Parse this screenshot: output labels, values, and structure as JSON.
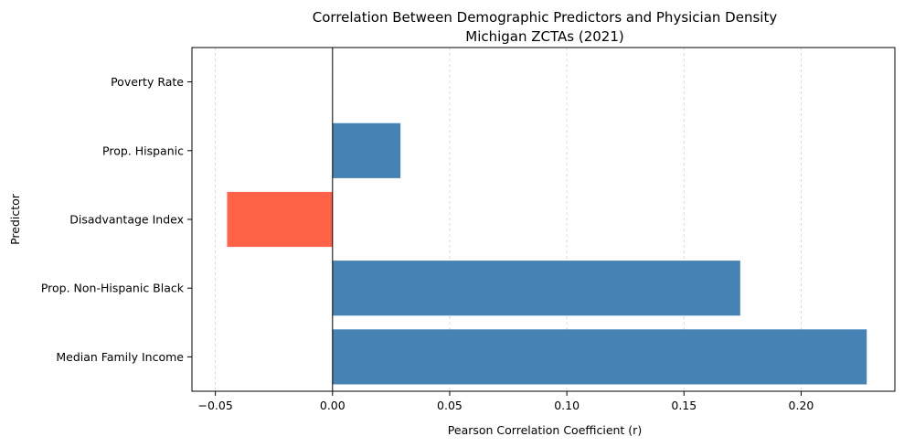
{
  "chart_data": {
    "type": "bar",
    "orientation": "horizontal",
    "title": "Correlation Between Demographic Predictors and Physician Density",
    "subtitle": "Michigan ZCTAs (2021)",
    "xlabel": "Pearson Correlation Coefficient (r)",
    "ylabel": "Predictor",
    "xlim": [
      -0.06,
      0.24
    ],
    "xticks": [
      -0.05,
      0.0,
      0.05,
      0.1,
      0.15,
      0.2
    ],
    "xtick_labels": [
      "−0.05",
      "0.00",
      "0.05",
      "0.10",
      "0.15",
      "0.20"
    ],
    "categories": [
      "Median Family Income",
      "Prop. Non-Hispanic Black",
      "Disadvantage Index",
      "Prop. Hispanic",
      "Poverty Rate"
    ],
    "values": [
      0.228,
      0.174,
      -0.045,
      0.029,
      0.0
    ],
    "colors": {
      "positive": "#4682b4",
      "negative": "#ff6347",
      "zero_line": "#000000",
      "grid": "#d3d3d3"
    },
    "grid": "x-dashed",
    "legend": "none"
  }
}
